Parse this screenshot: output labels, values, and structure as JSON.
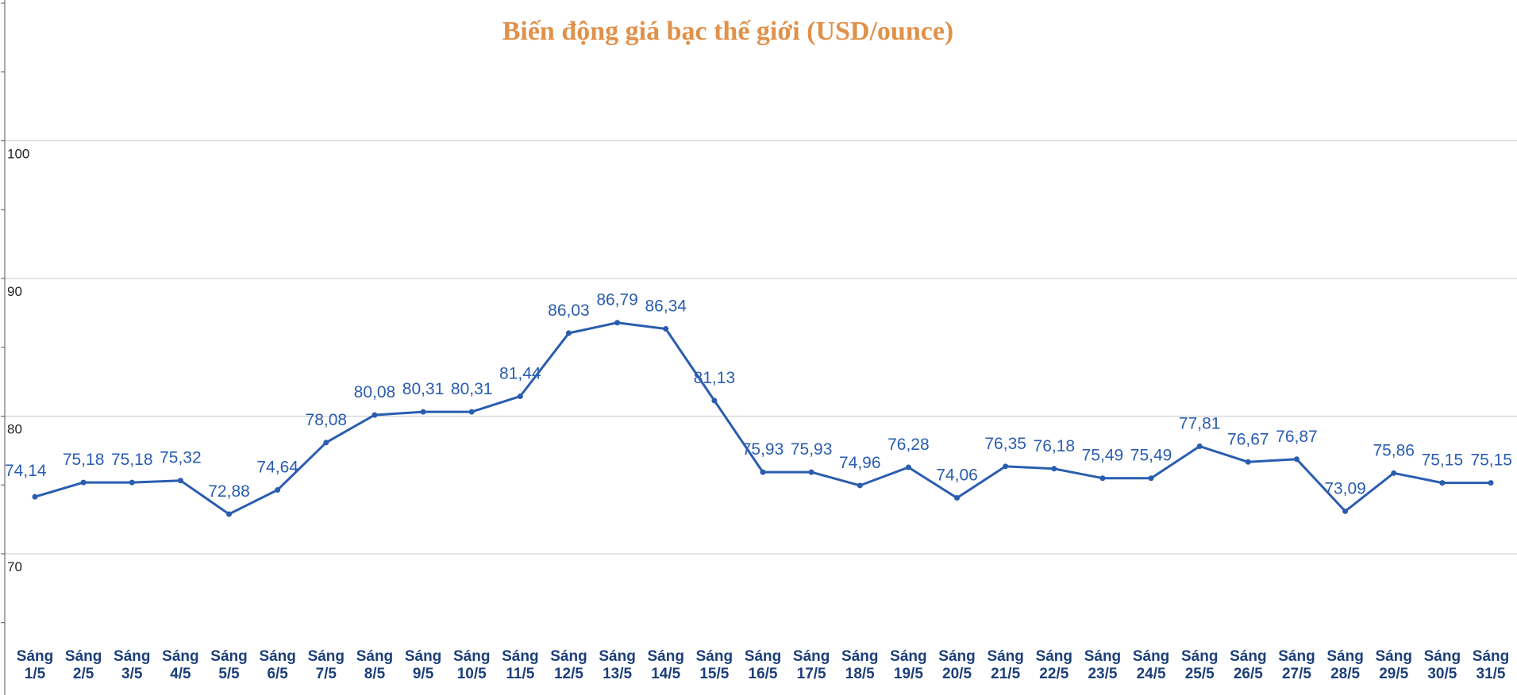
{
  "chart_data": {
    "type": "line",
    "title": "Biến động giá bạc thế giới (USD/ounce)",
    "xlabel": "",
    "ylabel": "",
    "ylim": [
      63,
      114
    ],
    "yticks": [
      70,
      80,
      90,
      100
    ],
    "grid": true,
    "line_color": "#2a5db0",
    "title_color": "#e0914a",
    "categories": [
      [
        "Sáng",
        "1/5"
      ],
      [
        "Sáng",
        "2/5"
      ],
      [
        "Sáng",
        "3/5"
      ],
      [
        "Sáng",
        "4/5"
      ],
      [
        "Sáng",
        "5/5"
      ],
      [
        "Sáng",
        "6/5"
      ],
      [
        "Sáng",
        "7/5"
      ],
      [
        "Sáng",
        "8/5"
      ],
      [
        "Sáng",
        "9/5"
      ],
      [
        "Sáng",
        "10/5"
      ],
      [
        "Sáng",
        "11/5"
      ],
      [
        "Sáng",
        "12/5"
      ],
      [
        "Sáng",
        "13/5"
      ],
      [
        "Sáng",
        "14/5"
      ],
      [
        "Sáng",
        "15/5"
      ],
      [
        "Sáng",
        "16/5"
      ],
      [
        "Sáng",
        "17/5"
      ],
      [
        "Sáng",
        "18/5"
      ],
      [
        "Sáng",
        "19/5"
      ],
      [
        "Sáng",
        "20/5"
      ],
      [
        "Sáng",
        "21/5"
      ],
      [
        "Sáng",
        "22/5"
      ],
      [
        "Sáng",
        "23/5"
      ],
      [
        "Sáng",
        "24/5"
      ],
      [
        "Sáng",
        "25/5"
      ],
      [
        "Sáng",
        "26/5"
      ],
      [
        "Sáng",
        "27/5"
      ],
      [
        "Sáng",
        "28/5"
      ],
      [
        "Sáng",
        "29/5"
      ],
      [
        "Sáng",
        "30/5"
      ],
      [
        "Sáng",
        "31/5"
      ]
    ],
    "values": [
      74.14,
      75.18,
      75.18,
      75.32,
      72.88,
      74.64,
      78.08,
      80.08,
      80.31,
      80.31,
      81.44,
      86.03,
      86.79,
      86.34,
      81.13,
      75.93,
      75.93,
      74.96,
      76.28,
      74.06,
      76.35,
      76.18,
      75.49,
      75.49,
      77.81,
      76.67,
      76.87,
      73.09,
      75.86,
      75.15,
      75.15
    ],
    "value_labels": [
      "74,14",
      "75,18",
      "75,18",
      "75,32",
      "72,88",
      "74,64",
      "78,08",
      "80,08",
      "80,31",
      "80,31",
      "81,44",
      "86,03",
      "86,79",
      "86,34",
      "81,13",
      "75,93",
      "75,93",
      "74,96",
      "76,28",
      "74,06",
      "76,35",
      "76,18",
      "75,49",
      "75,49",
      "77,81",
      "76,67",
      "76,87",
      "73,09",
      "75,86",
      "75,15",
      "75,15"
    ]
  }
}
